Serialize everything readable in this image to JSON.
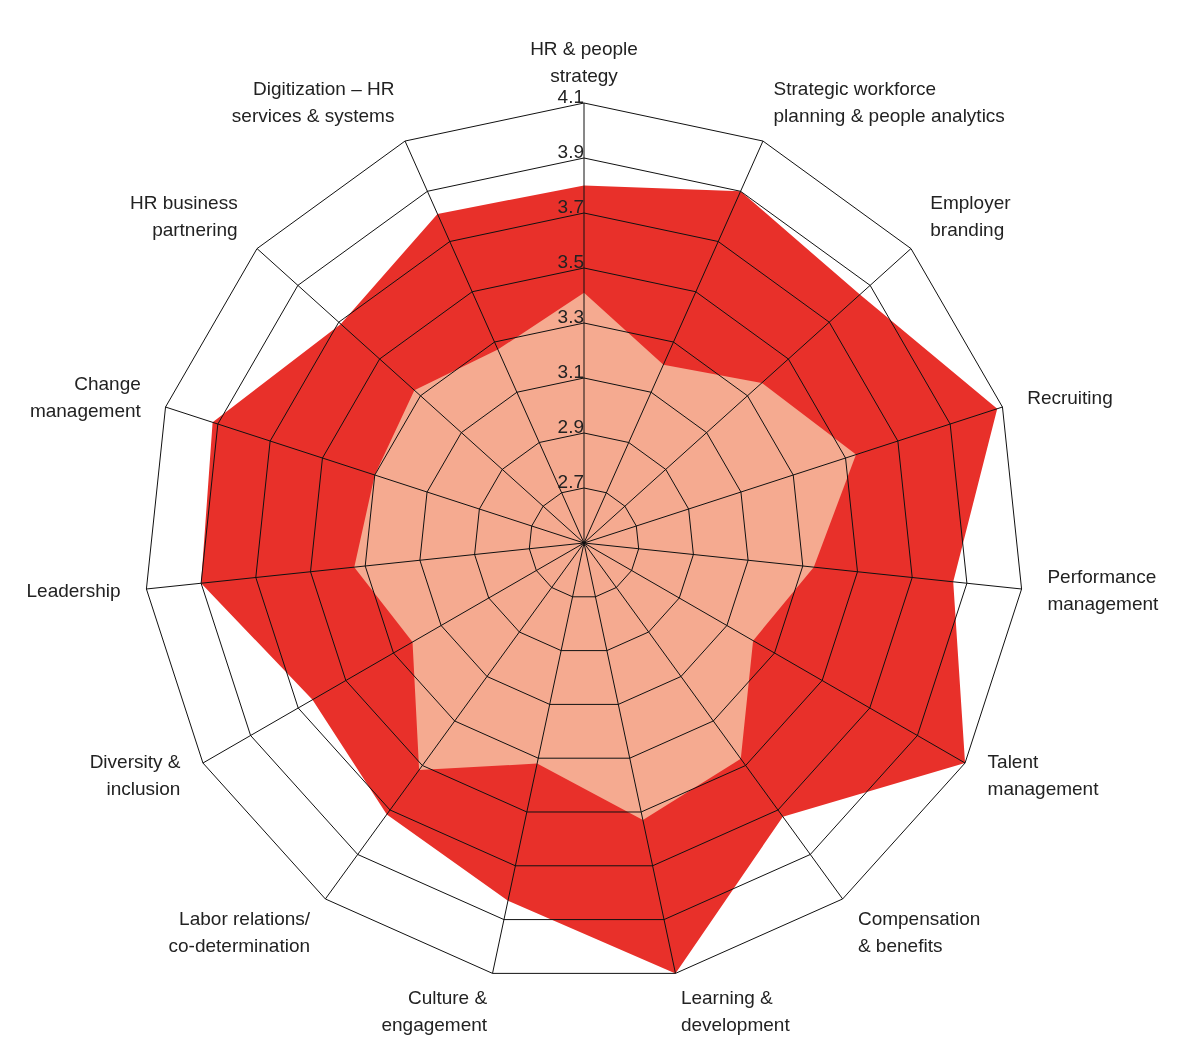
{
  "chart_data": {
    "type": "radar",
    "categories": [
      "HR & people strategy",
      "Strategic workforce planning & people analytics",
      "Employer branding",
      "Recruiting",
      "Performance management",
      "Talent management",
      "Compensation & benefits",
      "Learning & development",
      "Culture & engagement",
      "Labor relations/ co-determination",
      "Diversity & inclusion",
      "Leadership",
      "Change management",
      "HR business partnering",
      "Digitization – HR services & systems"
    ],
    "series": [
      {
        "color": "#e8302a",
        "values": [
          3.8,
          3.9,
          3.85,
          4.08,
          3.85,
          4.1,
          3.73,
          4.1,
          3.83,
          3.72,
          3.64,
          3.9,
          3.92,
          3.69,
          3.81
        ]
      },
      {
        "color": "#f5aa90",
        "values": [
          3.41,
          3.21,
          3.37,
          3.54,
          3.34,
          3.21,
          3.47,
          3.53,
          3.32,
          3.52,
          3.22,
          3.34,
          3.3,
          3.33,
          3.27
        ]
      }
    ],
    "ylim": [
      2.5,
      4.1
    ],
    "yticks": [
      2.7,
      2.9,
      3.1,
      3.3,
      3.5,
      3.7,
      3.9,
      4.1
    ],
    "grid": true,
    "legend": false
  }
}
